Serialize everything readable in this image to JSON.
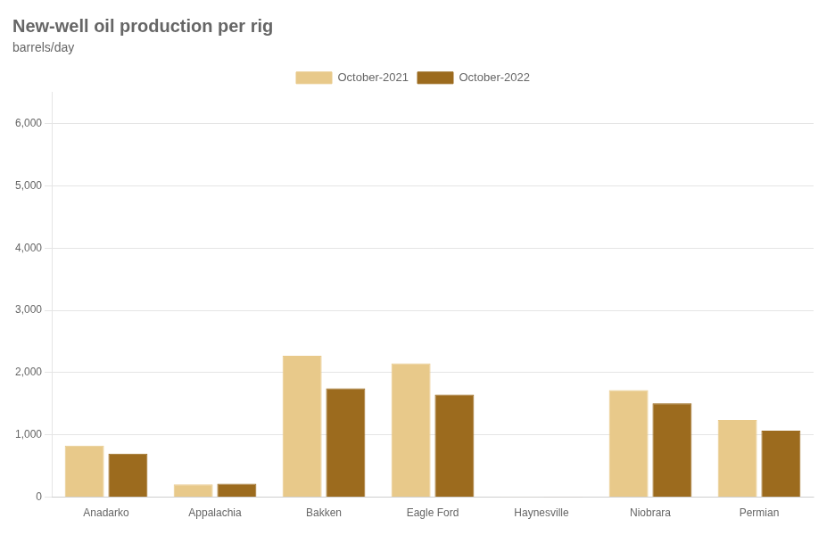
{
  "chart_data": {
    "type": "bar",
    "title": "New-well oil production per rig",
    "subtitle": "barrels/day",
    "categories": [
      "Anadarko",
      "Appalachia",
      "Bakken",
      "Eagle Ford",
      "Haynesville",
      "Niobrara",
      "Permian"
    ],
    "series": [
      {
        "name": "October-2021",
        "color": "#e8c98a",
        "values": [
          830,
          205,
          2270,
          2150,
          5,
          1720,
          1240
        ]
      },
      {
        "name": "October-2022",
        "color": "#9c6b1e",
        "values": [
          700,
          215,
          1750,
          1650,
          5,
          1510,
          1070
        ]
      }
    ],
    "ylim": [
      0,
      6500
    ],
    "yticks": [
      0,
      {
        "value": 1000,
        "label": "1,000"
      },
      {
        "value": 2000,
        "label": "2,000"
      },
      {
        "value": 3000,
        "label": "3,000"
      },
      {
        "value": 4000,
        "label": "4,000"
      },
      {
        "value": 5000,
        "label": "5,000"
      },
      {
        "value": 6000,
        "label": "6,000"
      }
    ],
    "grid": true,
    "legend": "top"
  }
}
